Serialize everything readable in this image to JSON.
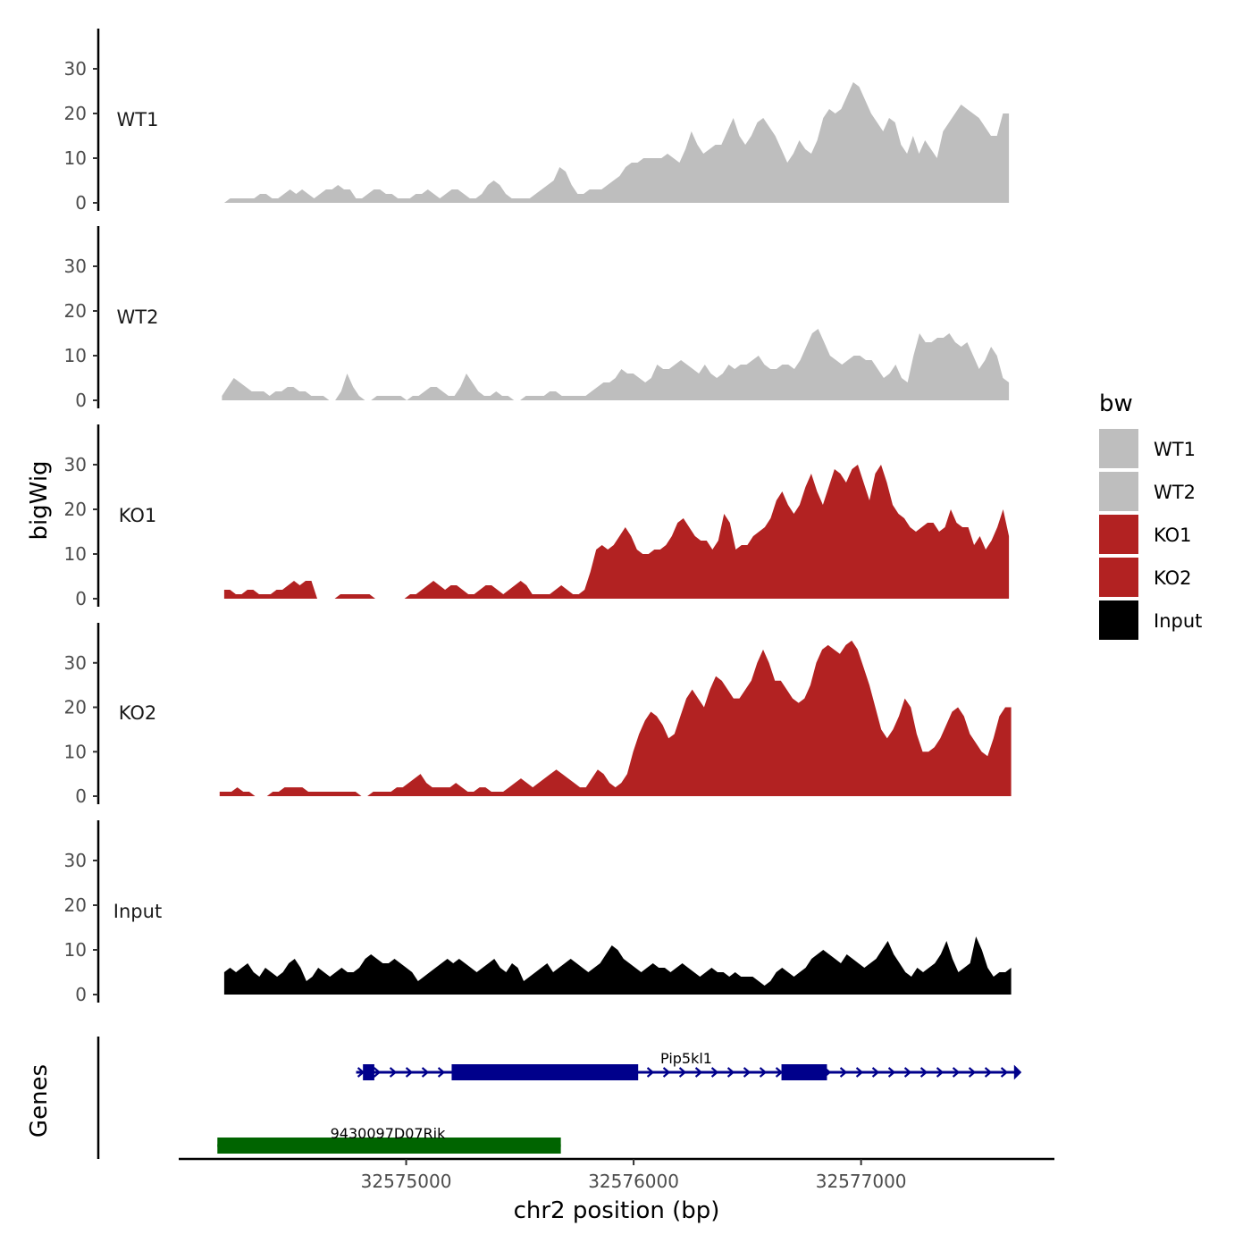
{
  "chart_data": {
    "type": "area",
    "title": "",
    "xlabel": "chr2 position (bp)",
    "ylabel": "bigWig",
    "genes_label": "Genes",
    "x_range": [
      32574000,
      32577850
    ],
    "x_ticks": [
      32575000,
      32576000,
      32577000
    ],
    "x_tick_labels": [
      "32575000",
      "32576000",
      "32577000"
    ],
    "ylim": [
      0,
      38
    ],
    "y_ticks": [
      0,
      10,
      20,
      30
    ],
    "y_tick_labels": [
      "0",
      "10",
      "20",
      "30"
    ],
    "legend": {
      "title": "bw",
      "position": "right",
      "entries": [
        {
          "label": "WT1",
          "color": "#bebebe"
        },
        {
          "label": "WT2",
          "color": "#bebebe"
        },
        {
          "label": "KO1",
          "color": "#b22222"
        },
        {
          "label": "KO2",
          "color": "#b22222"
        },
        {
          "label": "Input",
          "color": "#000000"
        }
      ]
    },
    "series": [
      {
        "name": "WT1",
        "color": "#bebebe",
        "x_start": 32574200,
        "x_end": 32577650,
        "values": [
          0,
          1,
          1,
          1,
          1,
          1,
          2,
          2,
          1,
          1,
          2,
          3,
          2,
          3,
          2,
          1,
          2,
          3,
          3,
          4,
          3,
          3,
          1,
          1,
          2,
          3,
          3,
          2,
          2,
          1,
          1,
          1,
          2,
          2,
          3,
          2,
          1,
          2,
          3,
          3,
          2,
          1,
          1,
          2,
          4,
          5,
          4,
          2,
          1,
          1,
          1,
          1,
          2,
          3,
          4,
          5,
          8,
          7,
          4,
          2,
          2,
          3,
          3,
          3,
          4,
          5,
          6,
          8,
          9,
          9,
          10,
          10,
          10,
          10,
          11,
          10,
          9,
          12,
          16,
          13,
          11,
          12,
          13,
          13,
          16,
          19,
          15,
          13,
          15,
          18,
          19,
          17,
          15,
          12,
          9,
          11,
          14,
          12,
          11,
          14,
          19,
          21,
          20,
          21,
          24,
          27,
          26,
          23,
          20,
          18,
          16,
          19,
          18,
          13,
          11,
          15,
          11,
          14,
          12,
          10,
          16,
          18,
          20,
          22,
          21,
          20,
          19,
          17,
          15,
          15,
          20,
          20
        ]
      },
      {
        "name": "WT2",
        "color": "#bebebe",
        "x_start": 32574190,
        "x_end": 32577650,
        "values": [
          1,
          3,
          5,
          4,
          3,
          2,
          2,
          2,
          1,
          2,
          2,
          3,
          3,
          2,
          2,
          1,
          1,
          1,
          0,
          0,
          2,
          6,
          3,
          1,
          0,
          0,
          1,
          1,
          1,
          1,
          1,
          0,
          1,
          1,
          2,
          3,
          3,
          2,
          1,
          1,
          3,
          6,
          4,
          2,
          1,
          1,
          2,
          1,
          1,
          0,
          0,
          1,
          1,
          1,
          1,
          2,
          2,
          1,
          1,
          1,
          1,
          1,
          2,
          3,
          4,
          4,
          5,
          7,
          6,
          6,
          5,
          4,
          5,
          8,
          7,
          7,
          8,
          9,
          8,
          7,
          6,
          8,
          6,
          5,
          6,
          8,
          7,
          8,
          8,
          9,
          10,
          8,
          7,
          7,
          8,
          8,
          7,
          9,
          12,
          15,
          16,
          13,
          10,
          9,
          8,
          9,
          10,
          10,
          9,
          9,
          7,
          5,
          6,
          8,
          5,
          4,
          10,
          15,
          13,
          13,
          14,
          14,
          15,
          13,
          12,
          13,
          10,
          7,
          9,
          12,
          10,
          5,
          4
        ]
      },
      {
        "name": "KO1",
        "color": "#b22222",
        "x_start": 32574200,
        "x_end": 32577650,
        "values": [
          2,
          2,
          1,
          1,
          2,
          2,
          1,
          1,
          1,
          2,
          2,
          3,
          4,
          3,
          4,
          4,
          0,
          0,
          0,
          0,
          1,
          1,
          1,
          1,
          1,
          1,
          0,
          0,
          0,
          0,
          0,
          0,
          1,
          1,
          2,
          3,
          4,
          3,
          2,
          3,
          3,
          2,
          1,
          1,
          2,
          3,
          3,
          2,
          1,
          2,
          3,
          4,
          3,
          1,
          1,
          1,
          1,
          2,
          3,
          2,
          1,
          1,
          2,
          6,
          11,
          12,
          11,
          12,
          14,
          16,
          14,
          11,
          10,
          10,
          11,
          11,
          12,
          14,
          17,
          18,
          16,
          14,
          13,
          13,
          11,
          13,
          19,
          17,
          11,
          12,
          12,
          14,
          15,
          16,
          18,
          22,
          24,
          21,
          19,
          21,
          25,
          28,
          24,
          21,
          25,
          29,
          28,
          26,
          29,
          30,
          26,
          22,
          28,
          30,
          26,
          21,
          19,
          18,
          16,
          15,
          16,
          17,
          17,
          15,
          16,
          20,
          17,
          16,
          16,
          12,
          14,
          11,
          13,
          16,
          20,
          14
        ]
      },
      {
        "name": "KO2",
        "color": "#b22222",
        "x_start": 32574180,
        "x_end": 32577660,
        "values": [
          1,
          1,
          1,
          2,
          1,
          1,
          0,
          0,
          0,
          1,
          1,
          2,
          2,
          2,
          2,
          1,
          1,
          1,
          1,
          1,
          1,
          1,
          1,
          1,
          0,
          0,
          1,
          1,
          1,
          1,
          2,
          2,
          3,
          4,
          5,
          3,
          2,
          2,
          2,
          2,
          3,
          2,
          1,
          1,
          2,
          2,
          1,
          1,
          1,
          2,
          3,
          4,
          3,
          2,
          3,
          4,
          5,
          6,
          5,
          4,
          3,
          2,
          2,
          4,
          6,
          5,
          3,
          2,
          3,
          5,
          10,
          14,
          17,
          19,
          18,
          16,
          13,
          14,
          18,
          22,
          24,
          22,
          20,
          24,
          27,
          26,
          24,
          22,
          22,
          24,
          26,
          30,
          33,
          30,
          26,
          26,
          24,
          22,
          21,
          22,
          25,
          30,
          33,
          34,
          33,
          32,
          34,
          35,
          33,
          29,
          25,
          20,
          15,
          13,
          15,
          18,
          22,
          20,
          14,
          10,
          10,
          11,
          13,
          16,
          19,
          20,
          18,
          14,
          12,
          10,
          9,
          13,
          18,
          20,
          20
        ]
      },
      {
        "name": "Input",
        "color": "#000000",
        "x_start": 32574200,
        "x_end": 32577660,
        "values": [
          5,
          6,
          5,
          6,
          7,
          5,
          4,
          6,
          5,
          4,
          5,
          7,
          8,
          6,
          3,
          4,
          6,
          5,
          4,
          5,
          6,
          5,
          5,
          6,
          8,
          9,
          8,
          7,
          7,
          8,
          7,
          6,
          5,
          3,
          4,
          5,
          6,
          7,
          8,
          7,
          8,
          7,
          6,
          5,
          6,
          7,
          8,
          6,
          5,
          7,
          6,
          3,
          4,
          5,
          6,
          7,
          5,
          6,
          7,
          8,
          7,
          6,
          5,
          6,
          7,
          9,
          11,
          10,
          8,
          7,
          6,
          5,
          6,
          7,
          6,
          6,
          5,
          6,
          7,
          6,
          5,
          4,
          5,
          6,
          5,
          5,
          4,
          5,
          4,
          4,
          4,
          3,
          2,
          3,
          5,
          6,
          5,
          4,
          5,
          6,
          8,
          9,
          10,
          9,
          8,
          7,
          9,
          8,
          7,
          6,
          7,
          8,
          10,
          12,
          9,
          7,
          5,
          4,
          6,
          5,
          6,
          7,
          9,
          12,
          8,
          5,
          6,
          7,
          13,
          10,
          6,
          4,
          5,
          5,
          6
        ]
      }
    ],
    "genes": [
      {
        "name": "Pip5kl1",
        "color": "#00008b",
        "strand": "+",
        "start": 32574780,
        "end": 32577700,
        "exons": [
          [
            32574810,
            32574860
          ],
          [
            32575200,
            32576020
          ],
          [
            32576650,
            32576850
          ]
        ]
      },
      {
        "name": "9430097D07Rik",
        "color": "#006400",
        "strand": "-",
        "start": 32574170,
        "end": 32575680,
        "exons": [
          [
            32574170,
            32575680
          ]
        ]
      }
    ]
  }
}
